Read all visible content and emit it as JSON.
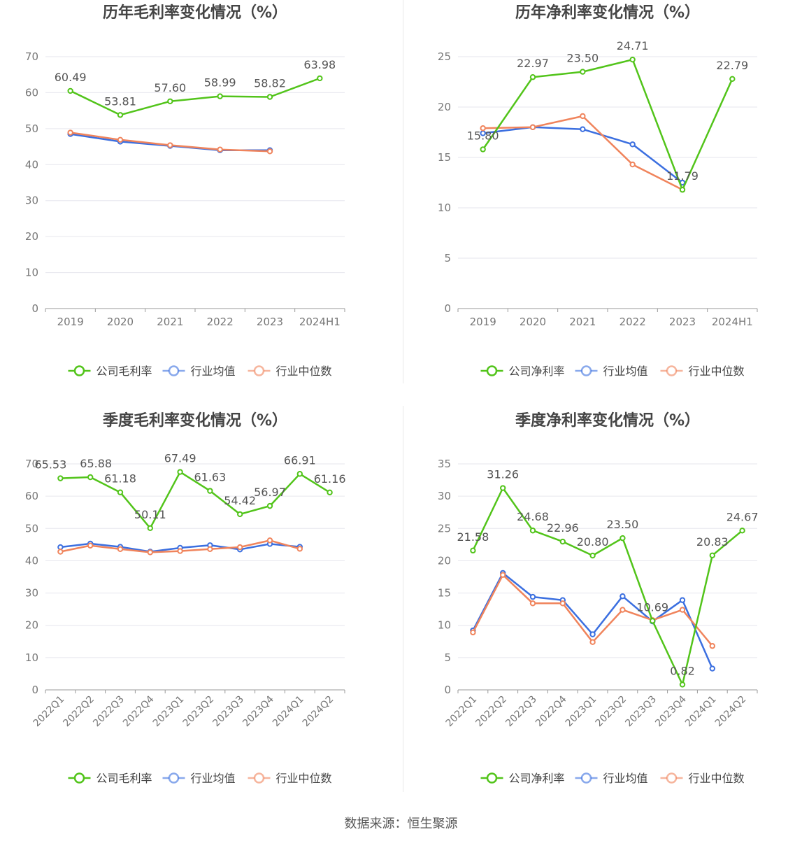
{
  "source_label": "数据来源：恒生聚源",
  "colors": {
    "company": "#52c41a",
    "avg": "#3b6fe0",
    "median": "#f0845c",
    "grid": "#e6e6ee",
    "axis": "#999999",
    "text": "#555555",
    "title": "#444444"
  },
  "chart_data": [
    {
      "type": "line",
      "title": "历年毛利率变化情况（%）",
      "categories": [
        "2019",
        "2020",
        "2021",
        "2022",
        "2023",
        "2024H1"
      ],
      "ylim": [
        0,
        70
      ],
      "ystep": 10,
      "rotate_labels": false,
      "series": [
        {
          "name": "公司毛利率",
          "key": "company",
          "values": [
            60.49,
            53.81,
            57.6,
            58.99,
            58.82,
            63.98
          ],
          "show_labels": true
        },
        {
          "name": "行业均值",
          "key": "avg",
          "values": [
            48.5,
            46.4,
            45.2,
            44.0,
            44.0,
            null
          ],
          "show_labels": false
        },
        {
          "name": "行业中位数",
          "key": "median",
          "values": [
            48.9,
            46.9,
            45.4,
            44.2,
            43.7,
            null
          ],
          "show_labels": false
        }
      ],
      "labels": [
        "60.49",
        "53.81",
        "57.60",
        "58.99",
        "58.82",
        "63.98"
      ]
    },
    {
      "type": "line",
      "title": "历年净利率变化情况（%）",
      "categories": [
        "2019",
        "2020",
        "2021",
        "2022",
        "2023",
        "2024H1"
      ],
      "ylim": [
        0,
        25
      ],
      "ystep": 5,
      "rotate_labels": false,
      "series": [
        {
          "name": "公司净利率",
          "key": "company",
          "values": [
            15.8,
            22.97,
            23.5,
            24.71,
            11.79,
            22.79
          ],
          "show_labels": true
        },
        {
          "name": "行业均值",
          "key": "avg",
          "values": [
            17.4,
            18.0,
            17.8,
            16.3,
            12.5,
            null
          ],
          "show_labels": false
        },
        {
          "name": "行业中位数",
          "key": "median",
          "values": [
            17.9,
            18.0,
            19.1,
            14.3,
            11.8,
            null
          ],
          "show_labels": false
        }
      ],
      "labels": [
        "15.80",
        "22.97",
        "23.50",
        "24.71",
        "11.79",
        "22.79"
      ]
    },
    {
      "type": "line",
      "title": "季度毛利率变化情况（%）",
      "categories": [
        "2022Q1",
        "2022Q2",
        "2022Q3",
        "2022Q4",
        "2023Q1",
        "2023Q2",
        "2023Q3",
        "2023Q4",
        "2024Q1",
        "2024Q2"
      ],
      "ylim": [
        0,
        70
      ],
      "ystep": 10,
      "rotate_labels": true,
      "series": [
        {
          "name": "公司毛利率",
          "key": "company",
          "values": [
            65.53,
            65.88,
            61.18,
            50.11,
            67.49,
            61.63,
            54.42,
            56.97,
            66.91,
            61.16
          ],
          "show_labels": true
        },
        {
          "name": "行业均值",
          "key": "avg",
          "values": [
            44.2,
            45.3,
            44.3,
            42.8,
            44.0,
            44.8,
            43.5,
            45.2,
            44.3,
            null
          ],
          "show_labels": false
        },
        {
          "name": "行业中位数",
          "key": "median",
          "values": [
            42.8,
            44.7,
            43.6,
            42.6,
            43.0,
            43.6,
            44.2,
            46.3,
            43.7,
            null
          ],
          "show_labels": false
        }
      ],
      "labels": [
        "65.53",
        "65.88",
        "61.18",
        "50.11",
        "67.49",
        "61.63",
        "54.42",
        "56.97",
        "66.91",
        "61.16"
      ]
    },
    {
      "type": "line",
      "title": "季度净利率变化情况（%）",
      "categories": [
        "2022Q1",
        "2022Q2",
        "2022Q3",
        "2022Q4",
        "2023Q1",
        "2023Q2",
        "2023Q3",
        "2023Q4",
        "2024Q1",
        "2024Q2"
      ],
      "ylim": [
        0,
        35
      ],
      "ystep": 5,
      "rotate_labels": true,
      "series": [
        {
          "name": "公司净利率",
          "key": "company",
          "values": [
            21.58,
            31.26,
            24.68,
            22.96,
            20.8,
            23.5,
            10.69,
            0.82,
            20.83,
            24.67
          ],
          "show_labels": true
        },
        {
          "name": "行业均值",
          "key": "avg",
          "values": [
            9.2,
            18.1,
            14.4,
            13.9,
            8.6,
            14.5,
            10.6,
            13.9,
            3.3,
            null
          ],
          "show_labels": false
        },
        {
          "name": "行业中位数",
          "key": "median",
          "values": [
            8.9,
            17.8,
            13.4,
            13.4,
            7.4,
            12.4,
            10.8,
            12.4,
            6.8,
            null
          ],
          "show_labels": false
        }
      ],
      "labels": [
        "21.58",
        "31.26",
        "24.68",
        "22.96",
        "20.80",
        "23.50",
        "10.69",
        "0.82",
        "20.83",
        "24.67"
      ]
    }
  ]
}
